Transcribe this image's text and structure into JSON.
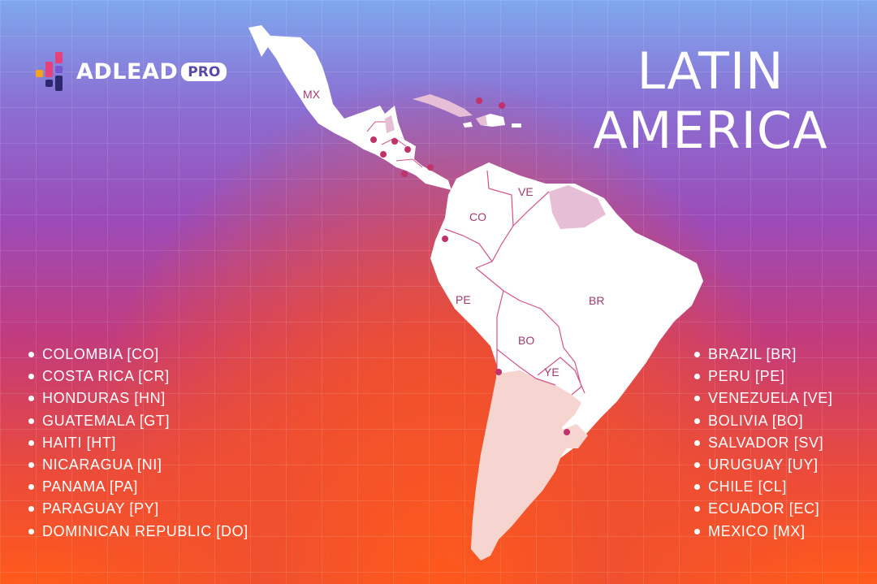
{
  "brand": {
    "name": "ADLEAD",
    "badge": "PRO",
    "colors": {
      "pink": "#e8407a",
      "orange": "#f5a31a",
      "navy": "#2c2870",
      "violet": "#7a57d1"
    }
  },
  "title": {
    "line1": "LATIN",
    "line2": "AMERICA"
  },
  "map_labels": {
    "mx": "MX",
    "co": "CO",
    "ve": "VE",
    "pe": "PE",
    "br": "BR",
    "bo": "BO",
    "ye": "YE"
  },
  "list_left": [
    "COLOMBIA [CO]",
    "COSTA RICA [CR]",
    "HONDURAS [HN]",
    "GUATEMALA [GT]",
    "HAITI [HT]",
    "NICARAGUA [NI]",
    "PANAMA [PA]",
    "PARAGUAY [PY]",
    "DOMINICAN REPUBLIC [DO]"
  ],
  "list_right": [
    "BRAZIL [BR]",
    "PERU [PE]",
    "VENEZUELA [VE]",
    "BOLIVIA [BO]",
    "SALVADOR [SV]",
    "URUGUAY [UY]",
    "CHILE [CL]",
    "ECUADOR [EC]",
    "MEXICO [MX]"
  ],
  "colors": {
    "land": "#ffffff",
    "highlight": "#f6d4cf",
    "highlight_alt": "#e6bfd7",
    "border": "#d4548a",
    "pin": "#c0326a"
  }
}
